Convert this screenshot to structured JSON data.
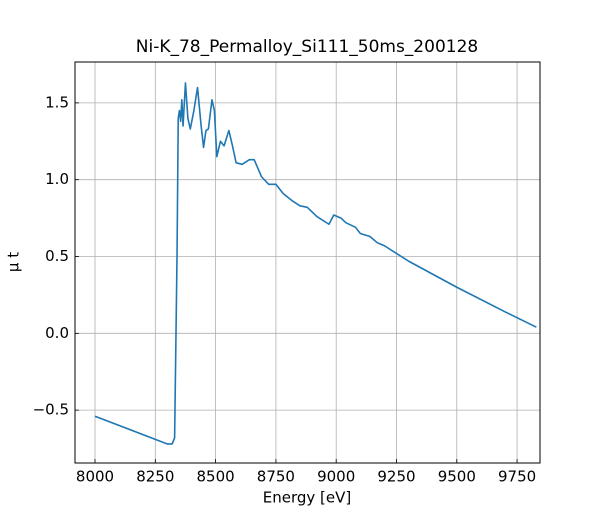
{
  "chart_data": {
    "type": "line",
    "title": "Ni-K_78_Permalloy_Si111_50ms_200128",
    "x_label": "Energy [eV]",
    "y_label": "μ t",
    "xlim": [
      7917,
      9845
    ],
    "ylim": [
      -0.844,
      1.766
    ],
    "xticks": [
      8000,
      8250,
      8500,
      8750,
      9000,
      9250,
      9500,
      9750
    ],
    "yticks": [
      {
        "value": -0.5,
        "label": "−0.5"
      },
      {
        "value": 0,
        "label": "0.0"
      },
      {
        "value": 0.5,
        "label": "0.5"
      },
      {
        "value": 1,
        "label": "1.0"
      },
      {
        "value": 1.5,
        "label": "1.5"
      }
    ],
    "grid": true,
    "series": [
      {
        "color": "#1f77b4",
        "x": [
          8000,
          8300,
          8320,
          8330,
          8340,
          8345,
          8350,
          8355,
          8360,
          8365,
          8375,
          8385,
          8395,
          8410,
          8425,
          8440,
          8450,
          8460,
          8470,
          8485,
          8495,
          8505,
          8520,
          8535,
          8555,
          8570,
          8585,
          8610,
          8640,
          8660,
          8690,
          8720,
          8750,
          8780,
          8820,
          8850,
          8880,
          8920,
          8970,
          8990,
          9020,
          9040,
          9080,
          9100,
          9140,
          9170,
          9200,
          9240,
          9300,
          9500,
          9700,
          9830
        ],
        "values": [
          -0.54,
          -0.72,
          -0.72,
          -0.68,
          0.5,
          1.4,
          1.45,
          1.38,
          1.52,
          1.35,
          1.63,
          1.4,
          1.33,
          1.45,
          1.6,
          1.35,
          1.21,
          1.32,
          1.33,
          1.52,
          1.45,
          1.15,
          1.25,
          1.22,
          1.32,
          1.22,
          1.11,
          1.1,
          1.13,
          1.13,
          1.02,
          0.97,
          0.97,
          0.91,
          0.86,
          0.83,
          0.82,
          0.76,
          0.71,
          0.77,
          0.75,
          0.72,
          0.69,
          0.65,
          0.63,
          0.59,
          0.57,
          0.53,
          0.47,
          0.3,
          0.14,
          0.04
        ]
      }
    ]
  }
}
